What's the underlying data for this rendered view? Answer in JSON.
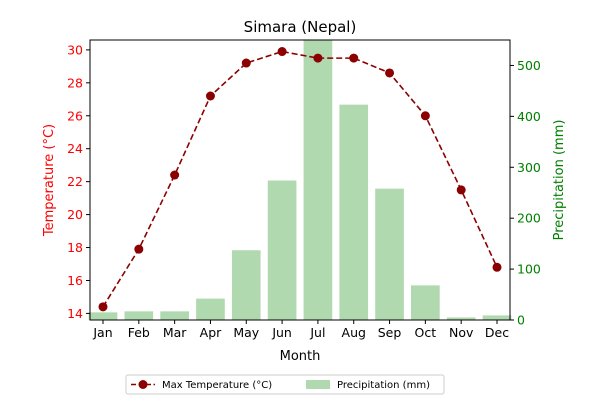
{
  "chart_data": {
    "type": "bar+line",
    "title": "Simara (Nepal)",
    "xlabel": "Month",
    "categories": [
      "Jan",
      "Feb",
      "Mar",
      "Apr",
      "May",
      "Jun",
      "Jul",
      "Aug",
      "Sep",
      "Oct",
      "Nov",
      "Dec"
    ],
    "left_axis": {
      "label": "Temperature (°C)",
      "color": "#ff0000",
      "ylim": [
        13.6,
        30.6
      ],
      "ticks": [
        14,
        16,
        18,
        20,
        22,
        24,
        26,
        28,
        30
      ]
    },
    "right_axis": {
      "label": "Precipitation (mm)",
      "color": "#008000",
      "ylim": [
        0,
        550
      ],
      "ticks": [
        0,
        100,
        200,
        300,
        400,
        500
      ]
    },
    "series": [
      {
        "name": "Max Temperature (°C)",
        "kind": "line",
        "axis": "left",
        "color": "#8b0000",
        "line_style": "dashed",
        "marker": "circle",
        "values": [
          14.4,
          17.9,
          22.4,
          27.2,
          29.2,
          29.9,
          29.5,
          29.5,
          28.6,
          26.0,
          21.5,
          16.8
        ]
      },
      {
        "name": "Precipitation (mm)",
        "kind": "bar",
        "axis": "right",
        "color": "#b0d9b0",
        "values": [
          15,
          17,
          17,
          42,
          137,
          274,
          550,
          423,
          258,
          68,
          5,
          9
        ]
      }
    ],
    "legend_position": "below",
    "grid": false
  }
}
